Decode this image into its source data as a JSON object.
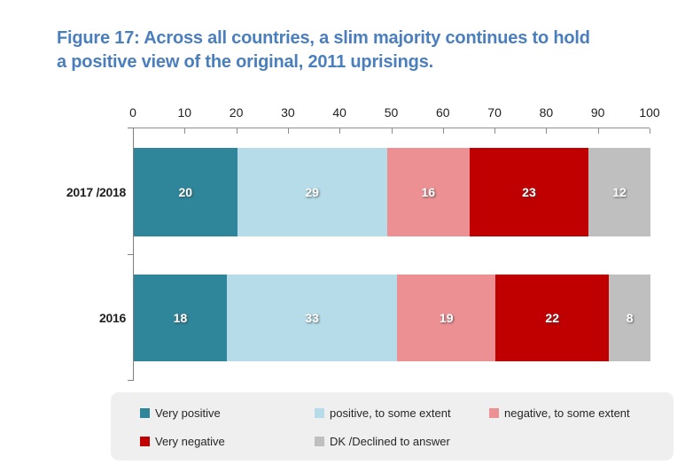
{
  "title": {
    "line1": "Figure 17: Across all countries, a slim majority continues to hold",
    "line2": "a positive view of the original, 2011 uprisings.",
    "color": "#4A7EBD"
  },
  "chart_data": {
    "type": "bar",
    "orientation": "horizontal-stacked",
    "title": "Figure 17: Across all countries, a slim majority continues to hold a positive view of the original, 2011 uprisings.",
    "categories": [
      "2017 /2018",
      "2016"
    ],
    "series": [
      {
        "name": "Very positive",
        "color": "#2F8599",
        "values": [
          20,
          18
        ]
      },
      {
        "name": "positive, to some extent",
        "color": "#B5DCE8",
        "values": [
          29,
          33
        ]
      },
      {
        "name": "negative, to some extent",
        "color": "#EC9094",
        "values": [
          16,
          19
        ]
      },
      {
        "name": "Very negative",
        "color": "#C00000",
        "values": [
          23,
          22
        ]
      },
      {
        "name": "DK /Declined to answer",
        "color": "#BFBFBF",
        "values": [
          12,
          8
        ]
      }
    ],
    "xlim": [
      0,
      100
    ],
    "x_ticks": [
      0,
      10,
      20,
      30,
      40,
      50,
      60,
      70,
      80,
      90,
      100
    ],
    "xlabel": "",
    "ylabel": "",
    "grid": false,
    "value_labels": "inside-white",
    "legend_position": "bottom"
  }
}
